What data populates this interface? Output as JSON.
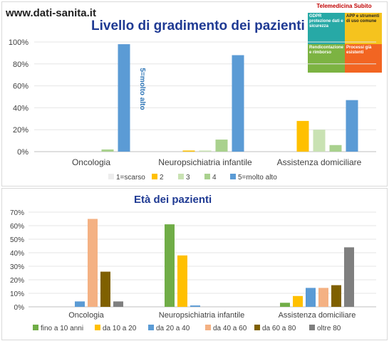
{
  "site_label": "www.dati-sanita.it",
  "badge": {
    "title": "Telemedicina Subito",
    "pieces": [
      "GDPR protezione dati e sicurezza",
      "APP e strumenti di uso comune",
      "Rendicontazione e rimborso",
      "Processi già esistenti"
    ]
  },
  "chart_data": [
    {
      "type": "bar",
      "title": "Livello di gradimento dei pazienti",
      "categories": [
        "Oncologia",
        "Neuropsichiatria infantile",
        "Assistenza domiciliare"
      ],
      "series": [
        {
          "name": "1=scarso",
          "color": "#ededed",
          "values": [
            0,
            0,
            0
          ]
        },
        {
          "name": "2",
          "color": "#ffc000",
          "values": [
            0,
            1,
            28
          ]
        },
        {
          "name": "3",
          "color": "#c9e2b3",
          "values": [
            0,
            1,
            20
          ]
        },
        {
          "name": "4",
          "color": "#a9d18e",
          "values": [
            2,
            11,
            6
          ]
        },
        {
          "name": "5=molto alto",
          "color": "#5b9bd5",
          "values": [
            98,
            88,
            47
          ]
        }
      ],
      "ylim": [
        0,
        100
      ],
      "yticks": [
        "0%",
        "20%",
        "40%",
        "60%",
        "80%",
        "100%"
      ],
      "annotation": "5=molto alto",
      "legend": "bottom"
    },
    {
      "type": "bar",
      "title": "Età dei pazienti",
      "categories": [
        "Oncologia",
        "Neuropsichiatria infantile",
        "Assistenza domiciliare"
      ],
      "series": [
        {
          "name": "fino a 10 anni",
          "color": "#70ad47",
          "values": [
            0,
            61,
            3
          ]
        },
        {
          "name": "da 10 a 20",
          "color": "#ffc000",
          "values": [
            0,
            38,
            8
          ]
        },
        {
          "name": "da 20 a 40",
          "color": "#5b9bd5",
          "values": [
            4,
            1,
            14
          ]
        },
        {
          "name": "da 40 a 60",
          "color": "#f4b183",
          "values": [
            65,
            0,
            14
          ]
        },
        {
          "name": "da 60 a 80",
          "color": "#7f6000",
          "values": [
            26,
            0,
            16
          ]
        },
        {
          "name": "oltre 80",
          "color": "#7f7f7f",
          "values": [
            4,
            0,
            44
          ]
        }
      ],
      "ylim": [
        0,
        70
      ],
      "yticks": [
        "0%",
        "10%",
        "20%",
        "30%",
        "40%",
        "50%",
        "60%",
        "70%"
      ],
      "legend": "bottom"
    }
  ]
}
